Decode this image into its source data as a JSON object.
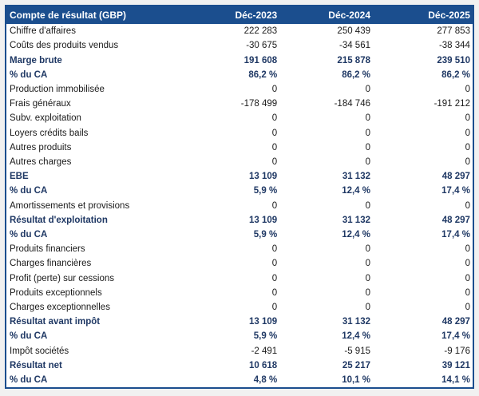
{
  "table": {
    "header_label": "Compte de résultat (GBP)",
    "columns": [
      "Déc-2023",
      "Déc-2024",
      "Déc-2025"
    ],
    "rows": [
      {
        "label": "Chiffre d'affaires",
        "values": [
          "222 283",
          "250 439",
          "277 853"
        ],
        "style": "normal"
      },
      {
        "label": "Coûts des produits vendus",
        "values": [
          "-30 675",
          "-34 561",
          "-38 344"
        ],
        "style": "normal"
      },
      {
        "label": "Marge brute",
        "values": [
          "191 608",
          "215 878",
          "239 510"
        ],
        "style": "bold"
      },
      {
        "label": "% du CA",
        "values": [
          "86,2 %",
          "86,2 %",
          "86,2 %"
        ],
        "style": "bold"
      },
      {
        "label": "Production immobilisée",
        "values": [
          "0",
          "0",
          "0"
        ],
        "style": "normal"
      },
      {
        "label": "Frais généraux",
        "values": [
          "-178 499",
          "-184 746",
          "-191 212"
        ],
        "style": "normal"
      },
      {
        "label": "Subv. exploitation",
        "values": [
          "0",
          "0",
          "0"
        ],
        "style": "normal"
      },
      {
        "label": "Loyers crédits bails",
        "values": [
          "0",
          "0",
          "0"
        ],
        "style": "normal"
      },
      {
        "label": "Autres produits",
        "values": [
          "0",
          "0",
          "0"
        ],
        "style": "normal"
      },
      {
        "label": "Autres charges",
        "values": [
          "0",
          "0",
          "0"
        ],
        "style": "normal"
      },
      {
        "label": "EBE",
        "values": [
          "13 109",
          "31 132",
          "48 297"
        ],
        "style": "bold"
      },
      {
        "label": "% du CA",
        "values": [
          "5,9 %",
          "12,4 %",
          "17,4 %"
        ],
        "style": "bold"
      },
      {
        "label": "Amortissements et provisions",
        "values": [
          "0",
          "0",
          "0"
        ],
        "style": "normal"
      },
      {
        "label": "Résultat d'exploitation",
        "values": [
          "13 109",
          "31 132",
          "48 297"
        ],
        "style": "bold"
      },
      {
        "label": "% du CA",
        "values": [
          "5,9 %",
          "12,4 %",
          "17,4 %"
        ],
        "style": "bold"
      },
      {
        "label": "Produits financiers",
        "values": [
          "0",
          "0",
          "0"
        ],
        "style": "normal"
      },
      {
        "label": "Charges financières",
        "values": [
          "0",
          "0",
          "0"
        ],
        "style": "normal"
      },
      {
        "label": "Profit (perte) sur cessions",
        "values": [
          "0",
          "0",
          "0"
        ],
        "style": "normal"
      },
      {
        "label": "Produits exceptionnels",
        "values": [
          "0",
          "0",
          "0"
        ],
        "style": "normal"
      },
      {
        "label": "Charges exceptionnelles",
        "values": [
          "0",
          "0",
          "0"
        ],
        "style": "normal"
      },
      {
        "label": "Résultat avant impôt",
        "values": [
          "13 109",
          "31 132",
          "48 297"
        ],
        "style": "bold"
      },
      {
        "label": "% du CA",
        "values": [
          "5,9 %",
          "12,4 %",
          "17,4 %"
        ],
        "style": "bold"
      },
      {
        "label": "Impôt sociétés",
        "values": [
          "-2 491",
          "-5 915",
          "-9 176"
        ],
        "style": "normal"
      },
      {
        "label": "Résultat net",
        "values": [
          "10 618",
          "25 217",
          "39 121"
        ],
        "style": "bold"
      },
      {
        "label": "% du CA",
        "values": [
          "4,8 %",
          "10,1 %",
          "14,1 %"
        ],
        "style": "bold"
      }
    ],
    "colors": {
      "header_bg": "#1B4E8E",
      "header_text": "#FFFFFF",
      "border": "#1B4E8E",
      "bold_text": "#1F3864",
      "normal_text": "#1A1A1A",
      "table_bg": "#FFFFFF",
      "page_bg": "#F1F1F1"
    }
  }
}
